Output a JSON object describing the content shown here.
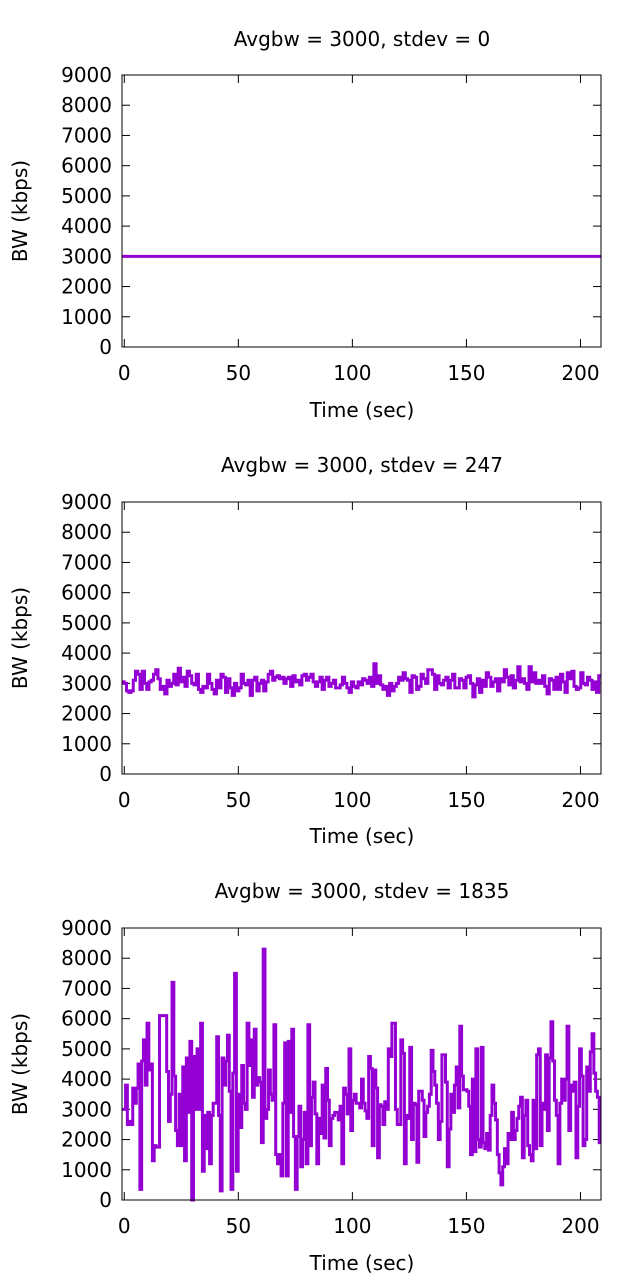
{
  "colors": {
    "series": "#9400d3",
    "axis": "#000000",
    "background": "#ffffff"
  },
  "chart_data": [
    {
      "type": "line",
      "title": "Avgbw = 3000, stdev = 0",
      "xlabel": "Time (sec)",
      "ylabel": "BW (kbps)",
      "xlim": [
        -1,
        209
      ],
      "ylim": [
        0,
        9000
      ],
      "xticks": [
        "0",
        "50",
        "100",
        "150",
        "200"
      ],
      "yticks": [
        "0",
        "1000",
        "2000",
        "3000",
        "4000",
        "5000",
        "6000",
        "7000",
        "8000",
        "9000"
      ],
      "grid": false,
      "series": [
        {
          "name": "BW",
          "step": 1,
          "values": [
            3000,
            3000
          ],
          "x": [
            -1,
            209
          ]
        }
      ]
    },
    {
      "type": "line",
      "title": "Avgbw = 3000, stdev = 247",
      "xlabel": "Time (sec)",
      "ylabel": "BW (kbps)",
      "xlim": [
        -1,
        209
      ],
      "ylim": [
        0,
        9000
      ],
      "xticks": [
        "0",
        "50",
        "100",
        "150",
        "200"
      ],
      "yticks": [
        "0",
        "1000",
        "2000",
        "3000",
        "4000",
        "5000",
        "6000",
        "7000",
        "8000",
        "9000"
      ],
      "grid": false,
      "series": [
        {
          "name": "BW",
          "step": 1,
          "x0": -1,
          "values": [
            3050,
            3000,
            2750,
            2700,
            2750,
            3100,
            3400,
            3300,
            2800,
            3400,
            3000,
            2800,
            3050,
            3100,
            3300,
            3450,
            3150,
            2800,
            2900,
            2650,
            3100,
            2900,
            3000,
            3300,
            2950,
            3500,
            3050,
            3200,
            2900,
            3400,
            3250,
            3000,
            2950,
            3300,
            2800,
            2700,
            2900,
            2850,
            3300,
            3000,
            2800,
            2650,
            3100,
            2850,
            3300,
            3200,
            2700,
            3150,
            2850,
            2600,
            3000,
            2750,
            2850,
            3300,
            3000,
            2950,
            3100,
            2600,
            3100,
            3200,
            2750,
            3000,
            3100,
            2750,
            3050,
            3300,
            3400,
            3100,
            3200,
            3250,
            3150,
            3200,
            3000,
            3150,
            3200,
            2900,
            3250,
            3050,
            3100,
            2950,
            3250,
            3300,
            3100,
            3200,
            3300,
            3050,
            2900,
            3050,
            3200,
            2800,
            3100,
            3200,
            2900,
            3000,
            3100,
            2850,
            2850,
            2950,
            3200,
            3000,
            2850,
            2700,
            3050,
            2900,
            2850,
            3050,
            2950,
            3150,
            3100,
            3000,
            3200,
            2900,
            3650,
            3000,
            3250,
            2950,
            2800,
            2900,
            2600,
            3000,
            2750,
            2900,
            3000,
            3200,
            3100,
            3350,
            3150,
            3100,
            2700,
            3250,
            3200,
            2800,
            2900,
            3300,
            3150,
            3000,
            3450,
            3450,
            3300,
            2800,
            3250,
            3000,
            2950,
            3100,
            3200,
            2850,
            3100,
            3300,
            2850,
            2850,
            3150,
            3100,
            2850,
            3200,
            3250,
            3000,
            2550,
            2950,
            3150,
            2700,
            3100,
            2900,
            3350,
            3200,
            2900,
            3050,
            3150,
            2750,
            3150,
            3050,
            3450,
            3200,
            2950,
            3250,
            2850,
            3100,
            3550,
            3050,
            3150,
            3000,
            2800,
            3550,
            3050,
            3350,
            3000,
            3100,
            3000,
            3250,
            2900,
            2650,
            3150,
            3100,
            2800,
            3200,
            2800,
            3300,
            3050,
            2700,
            3350,
            3150,
            3400,
            2900,
            2800,
            2850,
            3350,
            3000,
            2950,
            3200,
            3100,
            2800,
            3050,
            2700,
            3250
          ]
        }
      ]
    },
    {
      "type": "line",
      "title": "Avgbw = 3000, stdev = 1835",
      "xlabel": "Time (sec)",
      "ylabel": "BW (kbps)",
      "xlim": [
        -1,
        209
      ],
      "ylim": [
        0,
        9000
      ],
      "xticks": [
        "0",
        "50",
        "100",
        "150",
        "200"
      ],
      "yticks": [
        "0",
        "1000",
        "2000",
        "3000",
        "4000",
        "5000",
        "6000",
        "7000",
        "8000",
        "9000"
      ],
      "grid": false,
      "series": [
        {
          "name": "BW",
          "step": 1,
          "x0": -1,
          "values": [
            3000,
            3000,
            3800,
            2500,
            2600,
            2500,
            3700,
            3200,
            3700,
            4500,
            350,
            4600,
            5300,
            3800,
            5850,
            4300,
            4500,
            1300,
            1800,
            1750,
            1750,
            6100,
            6100,
            6100,
            6100,
            4250,
            2600,
            3500,
            7200,
            4100,
            2300,
            1800,
            3500,
            1800,
            4400,
            1300,
            4700,
            2900,
            5250,
            0,
            4750,
            3000,
            5000,
            3000,
            5850,
            950,
            2800,
            1700,
            2900,
            1200,
            2800,
            3200,
            3200,
            5400,
            2800,
            300,
            4700,
            3800,
            4600,
            5450,
            3600,
            350,
            4200,
            7500,
            950,
            3500,
            2400,
            4450,
            3200,
            3000,
            5850,
            4450,
            5300,
            3400,
            5650,
            3800,
            4050,
            3900,
            1900,
            8300,
            2700,
            3000,
            4300,
            3500,
            3300,
            5800,
            1500,
            1200,
            1500,
            800,
            3200,
            5200,
            800,
            5250,
            2900,
            5650,
            2100,
            350,
            2100,
            3100,
            1100,
            2000,
            2900,
            1200,
            5800,
            1800,
            3400,
            3900,
            2850,
            1200,
            2700,
            2200,
            3800,
            2050,
            4350,
            3300,
            1800,
            2700,
            2800,
            2900,
            2900,
            2650,
            3100,
            1200,
            3700,
            3500,
            2850,
            5000,
            2300,
            3300,
            3500,
            3200,
            3200,
            3050,
            4000,
            3200,
            2950,
            2700,
            4750,
            4350,
            1800,
            4300,
            3700,
            1400,
            3150,
            3100,
            2500,
            3250,
            3000,
            5000,
            4750,
            5850,
            5850,
            3000,
            2500,
            2500,
            5300,
            4850,
            1200,
            2800,
            2700,
            5050,
            2000,
            3200,
            3150,
            1250,
            3600,
            3600,
            3300,
            2100,
            2900,
            3100,
            3500,
            4950,
            4250,
            3800,
            3200,
            2000,
            2600,
            4800,
            4800,
            3900,
            1100,
            2350,
            3500,
            2900,
            3800,
            4400,
            3050,
            5750,
            4100,
            3650,
            3650,
            3600,
            3100,
            1500,
            4000,
            1600,
            5000,
            2000,
            1750,
            5050,
            1900,
            1700,
            2200,
            1650,
            2800,
            3800,
            3200,
            2650,
            1500,
            900,
            500,
            1100,
            1700,
            1200,
            2200,
            2000,
            2900,
            2000,
            2300,
            2700,
            3100,
            3400,
            1400,
            2800,
            3300,
            1800,
            1500,
            1300,
            3300,
            1700,
            4800,
            5000,
            1800,
            3200,
            3000,
            4800,
            2300,
            4700,
            5900,
            4600,
            3300,
            2800,
            1200,
            3200,
            4000,
            3300,
            4000,
            5750,
            2300,
            3800,
            3600,
            3900,
            1400,
            3100,
            5000,
            4100,
            1800,
            2000,
            4400,
            3600,
            4900,
            5500,
            4200,
            3600,
            3400,
            1900
          ]
        }
      ]
    }
  ]
}
